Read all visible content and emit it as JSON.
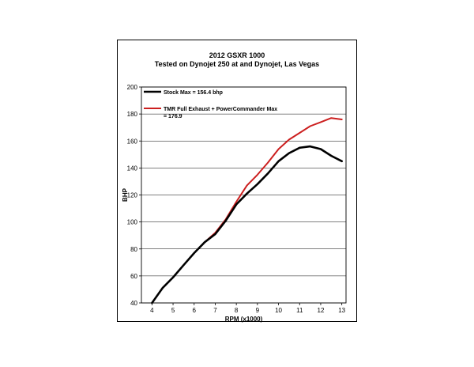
{
  "chart_data": {
    "type": "line",
    "title": "2012 GSXR 1000",
    "subtitle": "Tested on Dynojet  250 at and Dynojet, Las Vegas",
    "xlabel": "RPM (x1000)",
    "ylabel": "BHP",
    "xlim": [
      3.5,
      13.2
    ],
    "ylim": [
      40,
      200
    ],
    "x_ticks": [
      "4",
      "5",
      "6",
      "7",
      "8",
      "9",
      "10",
      "11",
      "12",
      "13"
    ],
    "y_ticks": [
      "40",
      "60",
      "80",
      "100",
      "120",
      "140",
      "160",
      "180",
      "200"
    ],
    "grid": "horizontal",
    "legend_position": "top-left",
    "series": [
      {
        "name": "Stock Max = 156.4 bhp",
        "color": "#000000",
        "x": [
          4.0,
          4.5,
          5.0,
          5.5,
          6.0,
          6.5,
          7.0,
          7.5,
          8.0,
          8.5,
          9.0,
          9.5,
          10.0,
          10.5,
          11.0,
          11.5,
          12.0,
          12.5,
          13.0
        ],
        "y": [
          40,
          51,
          59,
          68,
          77,
          85,
          91,
          101,
          113,
          121,
          128,
          136,
          145,
          151,
          155,
          156,
          154,
          149,
          145
        ]
      },
      {
        "name": "TMR Full Exhaust + PowerCommander Max = 176.9",
        "color": "#cc1f1f",
        "x": [
          6.5,
          7.0,
          7.5,
          8.0,
          8.5,
          9.0,
          9.5,
          10.0,
          10.5,
          11.0,
          11.5,
          12.0,
          12.5,
          13.0
        ],
        "y": [
          85,
          92,
          102,
          115,
          127,
          135,
          144,
          154,
          161,
          166,
          171,
          174,
          177,
          176
        ]
      }
    ]
  }
}
